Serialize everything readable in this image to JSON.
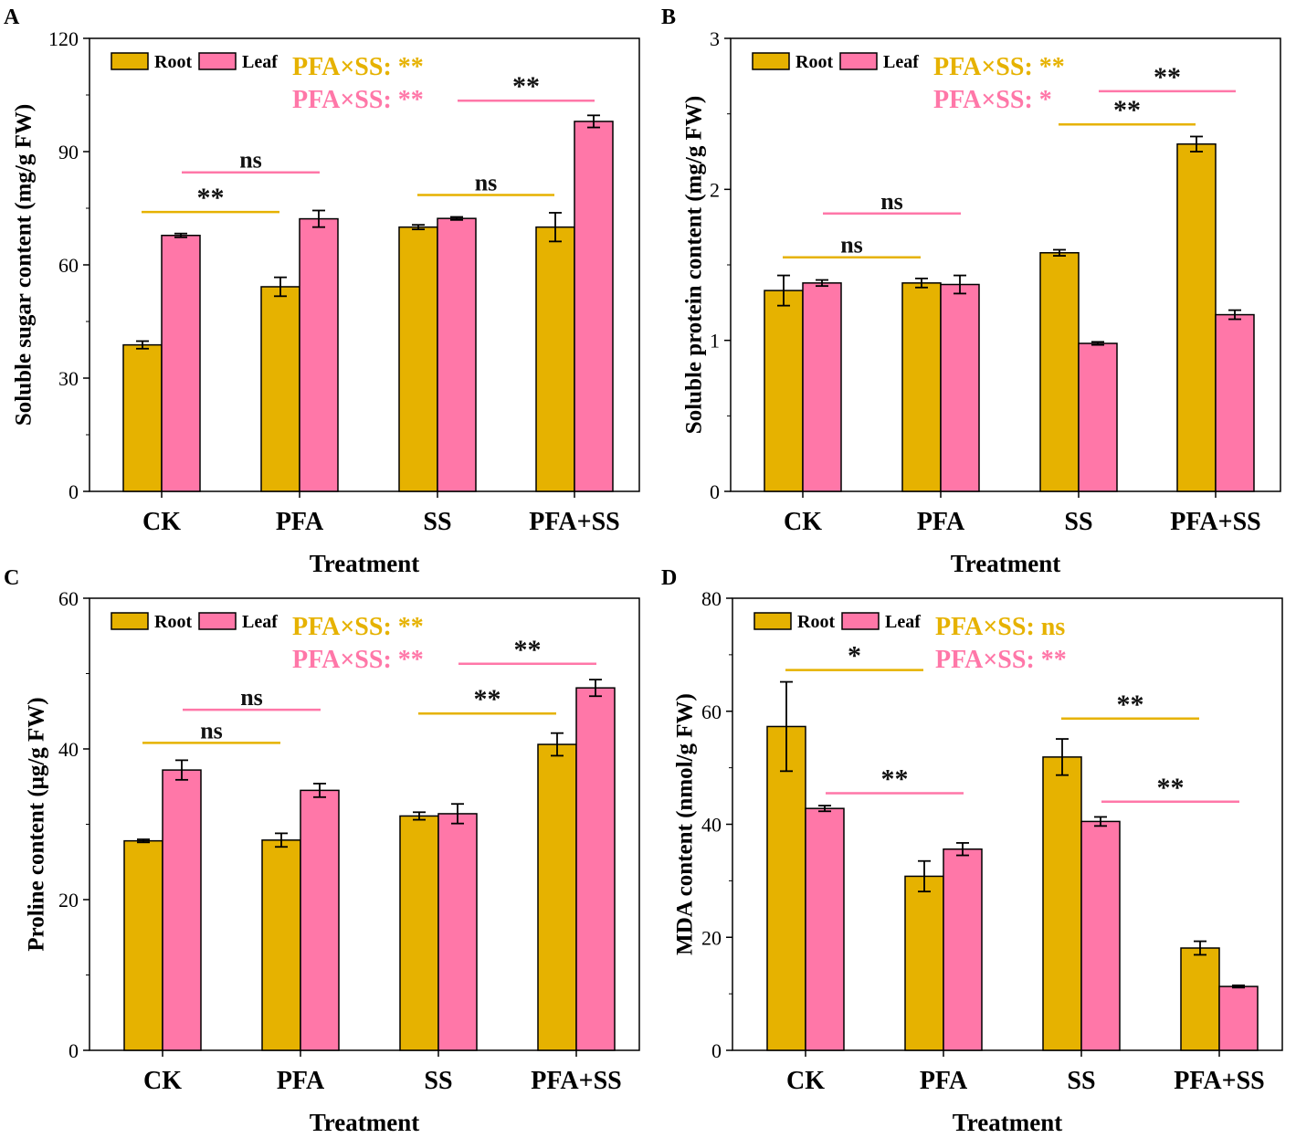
{
  "figure": {
    "colors": {
      "root": "#e6b200",
      "leaf": "#ff77a8",
      "annot_dark": "#111111",
      "axis": "#000000"
    }
  },
  "chart_data": [
    {
      "type": "bar",
      "panel_label": "A",
      "categories": [
        "CK",
        "PFA",
        "SS",
        "PFA+SS"
      ],
      "series": [
        {
          "name": "Root",
          "values": [
            38.8,
            54.2,
            70.0,
            70.0
          ],
          "errors": [
            1.0,
            2.5,
            0.6,
            3.8
          ]
        },
        {
          "name": "Leaf",
          "values": [
            67.8,
            72.2,
            72.3,
            98.0
          ],
          "errors": [
            0.5,
            2.2,
            0.4,
            1.6
          ]
        }
      ],
      "xlabel": "Treatment",
      "ylabel": "Soluble sugar content (mg/g FW)",
      "ylim": [
        0,
        120
      ],
      "yticks": [
        0,
        30,
        60,
        90,
        120
      ],
      "legend": [
        "Root",
        "Leaf"
      ],
      "interaction": [
        {
          "label": "PFA×SS:",
          "sig": "**",
          "series": "Root"
        },
        {
          "label": "PFA×SS:",
          "sig": "**",
          "series": "Leaf"
        }
      ],
      "comparisons": [
        {
          "series": "Root",
          "from": "CK",
          "to": "PFA",
          "text": "**",
          "y": 74
        },
        {
          "series": "Leaf",
          "from": "CK",
          "to": "PFA",
          "text": "ns",
          "y": 84.5
        },
        {
          "series": "Root",
          "from": "SS",
          "to": "PFA+SS",
          "text": "ns",
          "y": 78.5
        },
        {
          "series": "Leaf",
          "from": "SS",
          "to": "PFA+SS",
          "text": "**",
          "y": 103.5
        }
      ]
    },
    {
      "type": "bar",
      "panel_label": "B",
      "categories": [
        "CK",
        "PFA",
        "SS",
        "PFA+SS"
      ],
      "series": [
        {
          "name": "Root",
          "values": [
            1.33,
            1.38,
            1.58,
            2.3
          ],
          "errors": [
            0.1,
            0.03,
            0.02,
            0.05
          ]
        },
        {
          "name": "Leaf",
          "values": [
            1.38,
            1.37,
            0.98,
            1.17
          ],
          "errors": [
            0.02,
            0.06,
            0.01,
            0.03
          ]
        }
      ],
      "xlabel": "Treatment",
      "ylabel": "Soluble protein content (mg/g FW)",
      "ylim": [
        0,
        3
      ],
      "yticks": [
        0,
        1,
        2,
        3
      ],
      "legend": [
        "Root",
        "Leaf"
      ],
      "interaction": [
        {
          "label": "PFA×SS:",
          "sig": "**",
          "series": "Root"
        },
        {
          "label": "PFA×SS:",
          "sig": "*",
          "series": "Leaf"
        }
      ],
      "comparisons": [
        {
          "series": "Root",
          "from": "CK",
          "to": "PFA",
          "text": "ns",
          "y": 1.55
        },
        {
          "series": "Leaf",
          "from": "CK",
          "to": "PFA",
          "text": "ns",
          "y": 1.84
        },
        {
          "series": "Root",
          "from": "SS",
          "to": "PFA+SS",
          "text": "**",
          "y": 2.43
        },
        {
          "series": "Leaf",
          "from": "SS",
          "to": "PFA+SS",
          "text": "**",
          "y": 2.65
        }
      ]
    },
    {
      "type": "bar",
      "panel_label": "C",
      "categories": [
        "CK",
        "PFA",
        "SS",
        "PFA+SS"
      ],
      "series": [
        {
          "name": "Root",
          "values": [
            27.8,
            27.9,
            31.1,
            40.6
          ],
          "errors": [
            0.2,
            0.9,
            0.5,
            1.5
          ]
        },
        {
          "name": "Leaf",
          "values": [
            37.2,
            34.5,
            31.4,
            48.1
          ],
          "errors": [
            1.3,
            0.9,
            1.3,
            1.1
          ]
        }
      ],
      "xlabel": "Treatment",
      "ylabel": "Proline content (μg/g FW)",
      "ylim": [
        0,
        60
      ],
      "yticks": [
        0,
        20,
        40,
        60
      ],
      "legend": [
        "Root",
        "Leaf"
      ],
      "interaction": [
        {
          "label": "PFA×SS:",
          "sig": "**",
          "series": "Root"
        },
        {
          "label": "PFA×SS:",
          "sig": "**",
          "series": "Leaf"
        }
      ],
      "comparisons": [
        {
          "series": "Root",
          "from": "CK",
          "to": "PFA",
          "text": "ns",
          "y": 40.8
        },
        {
          "series": "Leaf",
          "from": "CK",
          "to": "PFA",
          "text": "ns",
          "y": 45.2
        },
        {
          "series": "Root",
          "from": "SS",
          "to": "PFA+SS",
          "text": "**",
          "y": 44.7
        },
        {
          "series": "Leaf",
          "from": "SS",
          "to": "PFA+SS",
          "text": "**",
          "y": 51.3
        }
      ]
    },
    {
      "type": "bar",
      "panel_label": "D",
      "categories": [
        "CK",
        "PFA",
        "SS",
        "PFA+SS"
      ],
      "series": [
        {
          "name": "Root",
          "values": [
            57.3,
            30.8,
            51.9,
            18.1
          ],
          "errors": [
            7.9,
            2.7,
            3.2,
            1.2
          ]
        },
        {
          "name": "Leaf",
          "values": [
            42.8,
            35.6,
            40.5,
            11.3
          ],
          "errors": [
            0.5,
            1.1,
            0.8,
            0.2
          ]
        }
      ],
      "xlabel": "Treatment",
      "ylabel": "MDA content (nmol/g FW)",
      "ylim": [
        0,
        80
      ],
      "yticks": [
        0,
        20,
        40,
        60,
        80
      ],
      "legend": [
        "Root",
        "Leaf"
      ],
      "interaction": [
        {
          "label": "PFA×SS:",
          "sig": "ns",
          "series": "Root"
        },
        {
          "label": "PFA×SS:",
          "sig": "**",
          "series": "Leaf"
        }
      ],
      "comparisons": [
        {
          "series": "Root",
          "from": "CK",
          "to": "PFA",
          "text": "*",
          "y": 67.3
        },
        {
          "series": "Leaf",
          "from": "CK",
          "to": "PFA",
          "text": "**",
          "y": 45.5
        },
        {
          "series": "Root",
          "from": "SS",
          "to": "PFA+SS",
          "text": "**",
          "y": 58.7
        },
        {
          "series": "Leaf",
          "from": "SS",
          "to": "PFA+SS",
          "text": "**",
          "y": 44.0
        }
      ]
    }
  ]
}
